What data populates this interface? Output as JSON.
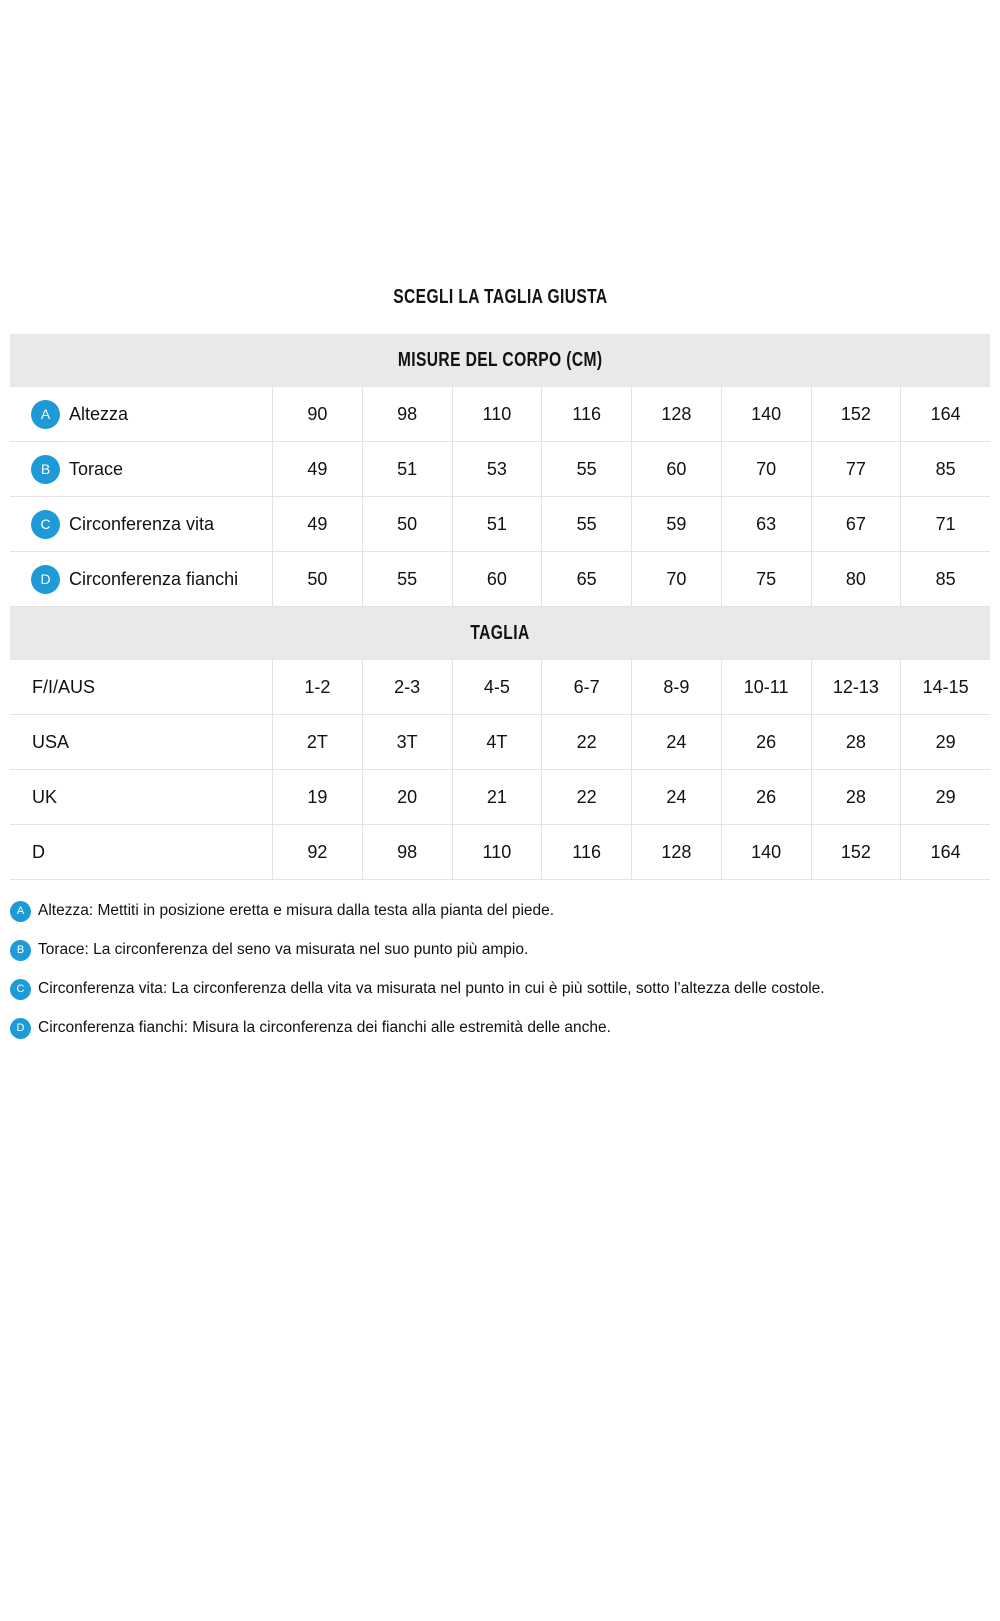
{
  "page": {
    "title": "SCEGLI LA TAGLIA GIUSTA"
  },
  "colors": {
    "accent_blue": "#1e9bd7",
    "section_header_bg": "#e9e9e9",
    "grid_border": "#e3e3e3",
    "text": "#121212"
  },
  "size_chart": {
    "sections": [
      {
        "header": "MISURE DEL CORPO (CM)",
        "rows": [
          {
            "badge": "A",
            "label": "Altezza",
            "values": [
              "90",
              "98",
              "110",
              "116",
              "128",
              "140",
              "152",
              "164"
            ]
          },
          {
            "badge": "B",
            "label": "Torace",
            "values": [
              "49",
              "51",
              "53",
              "55",
              "60",
              "70",
              "77",
              "85"
            ]
          },
          {
            "badge": "C",
            "label": "Circonferenza vita",
            "values": [
              "49",
              "50",
              "51",
              "55",
              "59",
              "63",
              "67",
              "71"
            ]
          },
          {
            "badge": "D",
            "label": "Circonferenza fianchi",
            "values": [
              "50",
              "55",
              "60",
              "65",
              "70",
              "75",
              "80",
              "85"
            ]
          }
        ]
      },
      {
        "header": "TAGLIA",
        "rows": [
          {
            "label": "F/I/AUS",
            "values": [
              "1-2",
              "2-3",
              "4-5",
              "6-7",
              "8-9",
              "10-11",
              "12-13",
              "14-15"
            ]
          },
          {
            "label": "USA",
            "values": [
              "2T",
              "3T",
              "4T",
              "22",
              "24",
              "26",
              "28",
              "29"
            ]
          },
          {
            "label": "UK",
            "values": [
              "19",
              "20",
              "21",
              "22",
              "24",
              "26",
              "28",
              "29"
            ]
          },
          {
            "label": "D",
            "values": [
              "92",
              "98",
              "110",
              "116",
              "128",
              "140",
              "152",
              "164"
            ]
          }
        ]
      }
    ]
  },
  "footnotes": [
    {
      "badge": "A",
      "text": "Altezza: Mettiti in posizione eretta e misura dalla testa alla pianta del piede."
    },
    {
      "badge": "B",
      "text": "Torace: La circonferenza del seno va misurata nel suo punto più ampio."
    },
    {
      "badge": "C",
      "text": "Circonferenza vita: La circonferenza della vita va misurata nel punto in cui è più sottile, sotto l’altezza delle costole."
    },
    {
      "badge": "D",
      "text": "Circonferenza fianchi: Misura la circonferenza dei fianchi alle estremità delle anche."
    }
  ]
}
